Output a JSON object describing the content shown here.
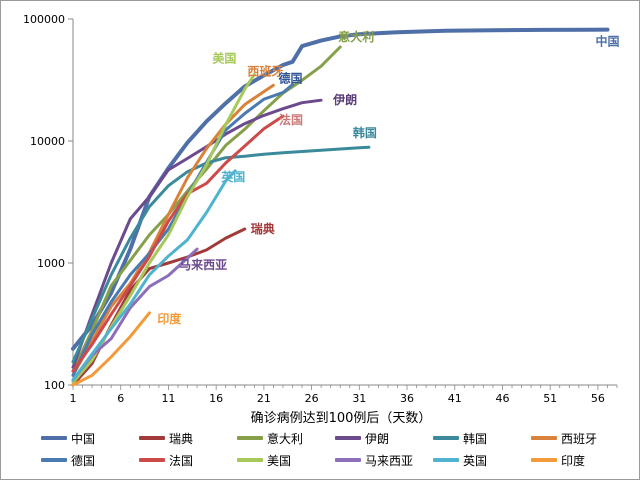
{
  "chart_data": {
    "type": "line",
    "title": "",
    "xlabel": "确诊病例达到100例后（天数）",
    "ylabel": "",
    "y_scale": "log",
    "ylim": [
      100,
      100000
    ],
    "xlim": [
      1,
      58
    ],
    "x_ticks": [
      1,
      6,
      11,
      16,
      21,
      26,
      31,
      36,
      41,
      46,
      51,
      56
    ],
    "y_ticks": [
      100,
      1000,
      10000,
      100000
    ],
    "y_tick_labels": [
      "100",
      "1000",
      "10000",
      "100000"
    ],
    "grid": false,
    "legend": "bottom",
    "series": [
      {
        "name": "中国",
        "color": "#4f6fa8",
        "width": 4,
        "x": [
          1,
          3,
          5,
          7,
          9,
          11,
          13,
          15,
          17,
          19,
          21,
          23,
          24,
          25,
          27,
          29,
          31,
          35,
          40,
          45,
          50,
          55,
          57
        ],
        "y": [
          198,
          310,
          570,
          1300,
          3500,
          6000,
          9700,
          14500,
          20400,
          28000,
          34500,
          42000,
          44600,
          60000,
          66500,
          72000,
          75000,
          78000,
          80000,
          81000,
          81400,
          81700,
          81800
        ]
      },
      {
        "name": "瑞典",
        "color": "#a33a3a",
        "width": 3,
        "x": [
          1,
          3,
          5,
          7,
          9,
          11,
          13,
          15,
          17,
          19
        ],
        "y": [
          100,
          150,
          310,
          600,
          900,
          1000,
          1120,
          1280,
          1600,
          1900
        ]
      },
      {
        "name": "意大利",
        "color": "#86a04a",
        "width": 3,
        "x": [
          1,
          3,
          5,
          7,
          9,
          11,
          13,
          15,
          17,
          19,
          21,
          23,
          25,
          27,
          29
        ],
        "y": [
          130,
          280,
          650,
          1050,
          1700,
          2500,
          3900,
          5900,
          9200,
          12500,
          17700,
          24700,
          31500,
          41000,
          59000
        ]
      },
      {
        "name": "伊朗",
        "color": "#6b4a8e",
        "width": 3,
        "x": [
          1,
          3,
          5,
          7,
          9,
          11,
          13,
          15,
          17,
          19,
          21,
          23,
          25,
          27
        ],
        "y": [
          140,
          380,
          1000,
          2300,
          3500,
          5800,
          7200,
          9000,
          11400,
          13900,
          16200,
          18400,
          20600,
          21600
        ]
      },
      {
        "name": "韩国",
        "color": "#3b8a9c",
        "width": 3,
        "x": [
          1,
          3,
          5,
          7,
          9,
          11,
          13,
          15,
          17,
          19,
          21,
          23,
          25,
          27,
          29,
          31,
          32
        ],
        "y": [
          155,
          350,
          800,
          1600,
          2900,
          4300,
          5600,
          6600,
          7300,
          7500,
          7800,
          8000,
          8200,
          8400,
          8600,
          8800,
          8900
        ]
      },
      {
        "name": "西班牙",
        "color": "#d9823b",
        "width": 3,
        "x": [
          1,
          3,
          5,
          7,
          9,
          11,
          13,
          15,
          17,
          19,
          21,
          22
        ],
        "y": [
          120,
          230,
          440,
          680,
          1220,
          2500,
          5000,
          8700,
          13700,
          19900,
          25400,
          28600
        ]
      },
      {
        "name": "德国",
        "color": "#4a7ab2",
        "width": 3,
        "x": [
          1,
          3,
          5,
          7,
          9,
          11,
          13,
          15,
          17,
          19,
          21,
          23,
          24
        ],
        "y": [
          120,
          260,
          480,
          800,
          1200,
          1900,
          3600,
          6700,
          12300,
          16800,
          22000,
          25000,
          29000
        ]
      },
      {
        "name": "法国",
        "color": "#cc4a4a",
        "width": 3,
        "x": [
          1,
          3,
          5,
          7,
          9,
          11,
          13,
          15,
          17,
          19,
          21,
          23
        ],
        "y": [
          130,
          215,
          380,
          650,
          1130,
          2200,
          3700,
          4500,
          6600,
          9100,
          12600,
          16000
        ]
      },
      {
        "name": "美国",
        "color": "#a6c95a",
        "width": 3,
        "x": [
          1,
          3,
          5,
          7,
          9,
          11,
          13,
          15,
          17,
          19,
          20
        ],
        "y": [
          105,
          160,
          300,
          540,
          1000,
          1700,
          3500,
          6400,
          13600,
          26700,
          35000
        ]
      },
      {
        "name": "马来西亚",
        "color": "#8c6fb8",
        "width": 3,
        "x": [
          1,
          3,
          5,
          7,
          9,
          11,
          13,
          14
        ],
        "y": [
          110,
          175,
          240,
          430,
          640,
          790,
          1100,
          1300
        ]
      },
      {
        "name": "英国",
        "color": "#4fb3cf",
        "width": 3,
        "x": [
          1,
          3,
          5,
          7,
          9,
          11,
          13,
          15,
          17,
          18
        ],
        "y": [
          110,
          180,
          290,
          460,
          800,
          1140,
          1550,
          2600,
          4700,
          5700
        ]
      },
      {
        "name": "印度",
        "color": "#f29b3a",
        "width": 3,
        "x": [
          1,
          3,
          5,
          7,
          9
        ],
        "y": [
          100,
          120,
          170,
          250,
          390
        ]
      }
    ],
    "annotations": [
      {
        "text": "中国",
        "color": "#4f6fa8"
      },
      {
        "text": "意大利",
        "color": "#86a04a"
      },
      {
        "text": "美国",
        "color": "#a6c95a"
      },
      {
        "text": "西班牙",
        "color": "#d9823b"
      },
      {
        "text": "德国",
        "color": "#2f5597"
      },
      {
        "text": "伊朗",
        "color": "#5a3d7a"
      },
      {
        "text": "法国",
        "color": "#cc7a7a"
      },
      {
        "text": "韩国",
        "color": "#3b8a9c"
      },
      {
        "text": "英国",
        "color": "#4fb3cf"
      },
      {
        "text": "瑞典",
        "color": "#a33a3a"
      },
      {
        "text": "马来西亚",
        "color": "#6b4a8e"
      },
      {
        "text": "印度",
        "color": "#f29b3a"
      }
    ]
  }
}
